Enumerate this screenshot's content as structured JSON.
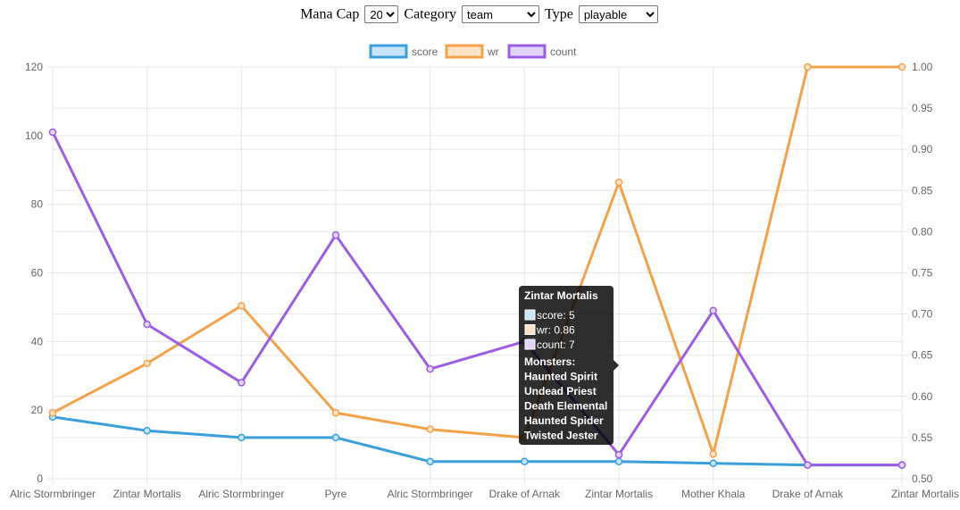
{
  "controls": {
    "mana_cap_label": "Mana Cap",
    "mana_cap_value": "20",
    "category_label": "Category",
    "category_value": "team",
    "type_label": "Type",
    "type_value": "playable"
  },
  "chart_data": {
    "type": "line",
    "categories": [
      "Alric Stormbringer",
      "Zintar Mortalis",
      "Alric Stormbringer",
      "Pyre",
      "Alric Stormbringer",
      "Drake of Arnak",
      "Zintar Mortalis",
      "Mother Khala",
      "Drake of Arnak",
      "Zintar Mortalis"
    ],
    "series": [
      {
        "name": "score",
        "axis": "left",
        "color": "#3b9fdc",
        "fill": "#c8e4f7",
        "values": [
          18,
          14,
          12,
          12,
          5,
          5,
          5,
          4.5,
          4,
          4
        ]
      },
      {
        "name": "wr",
        "axis": "right",
        "color": "#f4a24a",
        "fill": "#fde3c6",
        "values": [
          0.58,
          0.64,
          0.71,
          0.58,
          0.56,
          0.55,
          0.86,
          0.53,
          1.0,
          1.0
        ]
      },
      {
        "name": "count",
        "axis": "left",
        "color": "#9b5de5",
        "fill": "#e2d3f8",
        "values": [
          101,
          45,
          28,
          71,
          32,
          40,
          7,
          49,
          4,
          4
        ]
      }
    ],
    "y_left": {
      "min": 0,
      "max": 120,
      "ticks": [
        "0",
        "20",
        "40",
        "60",
        "80",
        "100",
        "120"
      ]
    },
    "y_right": {
      "min": 0.5,
      "max": 1.0,
      "ticks": [
        "0.50",
        "0.55",
        "0.60",
        "0.65",
        "0.70",
        "0.75",
        "0.80",
        "0.85",
        "0.90",
        "0.95",
        "1.00"
      ]
    },
    "grid": true,
    "legend_position": "top",
    "tooltip": {
      "category_index": 6,
      "title": "Zintar Mortalis",
      "lines": [
        {
          "series": "score",
          "text": "score: 5"
        },
        {
          "series": "wr",
          "text": "wr: 0.86"
        },
        {
          "series": "count",
          "text": "count: 7"
        }
      ],
      "monsters_header": "Monsters:",
      "monsters": [
        "Haunted Spirit",
        "Undead Priest",
        "Death Elemental",
        "Haunted Spider",
        "Twisted Jester"
      ]
    }
  }
}
